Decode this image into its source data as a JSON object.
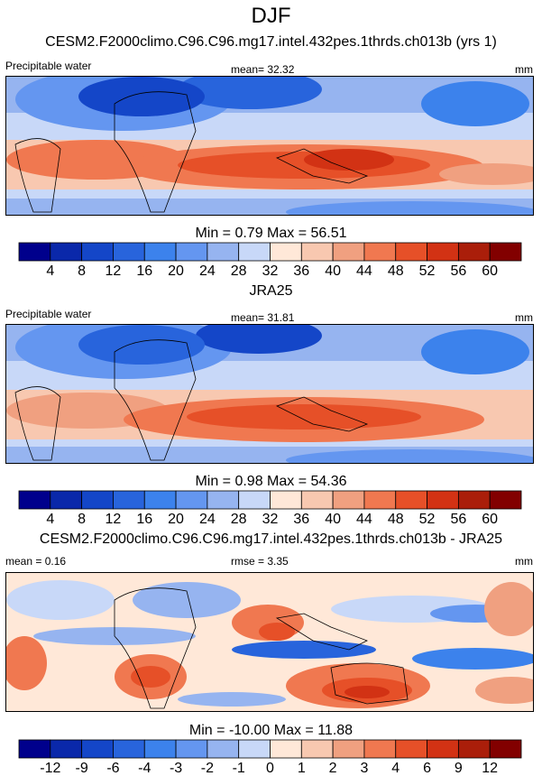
{
  "season": "DJF",
  "palettes": {
    "abs": [
      "#00008c",
      "#0a28aa",
      "#1446c8",
      "#2864dc",
      "#3c82ec",
      "#6496f0",
      "#96b4f0",
      "#c8d8f8",
      "#ffe8d8",
      "#f8c8b0",
      "#f0a080",
      "#f07850",
      "#e65028",
      "#d23214",
      "#aa1e0a",
      "#820000"
    ],
    "diff": [
      "#00008c",
      "#0a28aa",
      "#1446c8",
      "#2864dc",
      "#3c82ec",
      "#6496f0",
      "#96b4f0",
      "#c8d8f8",
      "#ffe8d8",
      "#f8c8b0",
      "#f0a080",
      "#f07850",
      "#e65028",
      "#d23214",
      "#aa1e0a",
      "#820000"
    ]
  },
  "chart_data": [
    {
      "type": "heatmap",
      "title": "CESM2.F2000climo.C96.C96.mg17.intel.432pes.1thrds.ch013b (yrs 1)",
      "left_label": "Precipitable water",
      "center_label": "mean=  32.32",
      "units": "mm",
      "min_max": "Min =   0.79 Max =  56.51",
      "colorbar_ticks": [
        "4",
        "8",
        "12",
        "16",
        "20",
        "24",
        "28",
        "32",
        "36",
        "40",
        "44",
        "48",
        "52",
        "56",
        "60"
      ]
    },
    {
      "type": "heatmap",
      "title": "JRA25",
      "left_label": "Precipitable water",
      "center_label": "mean=  31.81",
      "units": "mm",
      "min_max": "Min =   0.98 Max =  54.36",
      "colorbar_ticks": [
        "4",
        "8",
        "12",
        "16",
        "20",
        "24",
        "28",
        "32",
        "36",
        "40",
        "44",
        "48",
        "52",
        "56",
        "60"
      ]
    },
    {
      "type": "heatmap",
      "title": "CESM2.F2000climo.C96.C96.mg17.intel.432pes.1thrds.ch013b - JRA25",
      "left_label": "mean =   0.16",
      "center_label": "rmse =   3.35",
      "units": "mm",
      "min_max": "Min = -10.00 Max =  11.88",
      "colorbar_ticks": [
        "-12",
        "-9",
        "-6",
        "-4",
        "-3",
        "-2",
        "-1",
        "0",
        "1",
        "2",
        "3",
        "4",
        "6",
        "9",
        "12"
      ]
    }
  ]
}
